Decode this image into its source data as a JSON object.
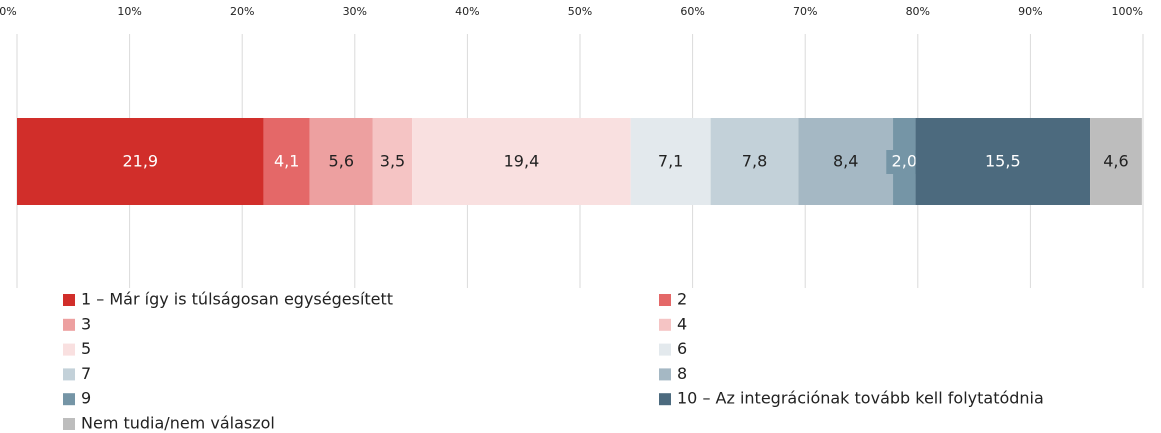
{
  "chart_data": {
    "type": "bar",
    "orientation": "horizontal",
    "stacked": true,
    "categories": [
      null
    ],
    "xlim": [
      0,
      100
    ],
    "xticks": [
      {
        "value": 0,
        "label": "0%"
      },
      {
        "value": 10,
        "label": "10%"
      },
      {
        "value": 20,
        "label": "20%"
      },
      {
        "value": 30,
        "label": "30%"
      },
      {
        "value": 40,
        "label": "40%"
      },
      {
        "value": 50,
        "label": "50%"
      },
      {
        "value": 60,
        "label": "60%"
      },
      {
        "value": 70,
        "label": "70%"
      },
      {
        "value": 80,
        "label": "80%"
      },
      {
        "value": 90,
        "label": "90%"
      },
      {
        "value": 100,
        "label": "100%"
      }
    ],
    "grid": true,
    "legend": "bottom",
    "series": [
      {
        "name": "1 – Már így is túlságosan egységesített",
        "color": "#d12e2a",
        "values": [
          21.9
        ],
        "value_labels": [
          "21,9"
        ]
      },
      {
        "name": "2",
        "color": "#e46868",
        "values": [
          4.1
        ],
        "value_labels": [
          "4,1"
        ]
      },
      {
        "name": "3",
        "color": "#eda0a0",
        "values": [
          5.6
        ],
        "value_labels": [
          "5,6"
        ]
      },
      {
        "name": "4",
        "color": "#f5c4c4",
        "values": [
          3.5
        ],
        "value_labels": [
          "3,5"
        ]
      },
      {
        "name": "5",
        "color": "#f9e0e0",
        "values": [
          19.4
        ],
        "value_labels": [
          "19,4"
        ]
      },
      {
        "name": "6",
        "color": "#e3e9ed",
        "values": [
          7.1
        ],
        "value_labels": [
          "7,1"
        ]
      },
      {
        "name": "7",
        "color": "#c3d1d9",
        "values": [
          7.8
        ],
        "value_labels": [
          "7,8"
        ]
      },
      {
        "name": "8",
        "color": "#a5b8c4",
        "values": [
          8.4
        ],
        "value_labels": [
          "8,4"
        ]
      },
      {
        "name": "9",
        "color": "#7595a6",
        "values": [
          2.0
        ],
        "value_labels": [
          "2,0"
        ]
      },
      {
        "name": "10 – Az integrációnak tovább kell folytatódnia",
        "color": "#4c6a7e",
        "values": [
          15.5
        ],
        "value_labels": [
          "15,5"
        ]
      },
      {
        "name": "Nem tudia/nem válaszol",
        "color": "#bdbdbd",
        "values": [
          4.6
        ],
        "value_labels": [
          "4,6"
        ]
      }
    ]
  }
}
